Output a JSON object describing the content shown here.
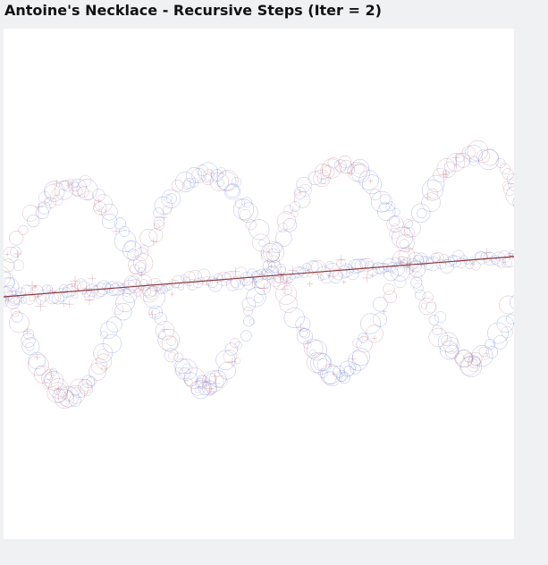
{
  "page": {
    "title": "Antoine's Necklace - Recursive Steps (Iter = 2)"
  },
  "figure": {
    "iterations": 2,
    "colors": {
      "background": "#ffffff",
      "page_background": "#f0f1f3",
      "ring_blue": "#6f7fd6",
      "ring_red": "#c07a8a",
      "axis_line": "#8b3a3a"
    }
  }
}
